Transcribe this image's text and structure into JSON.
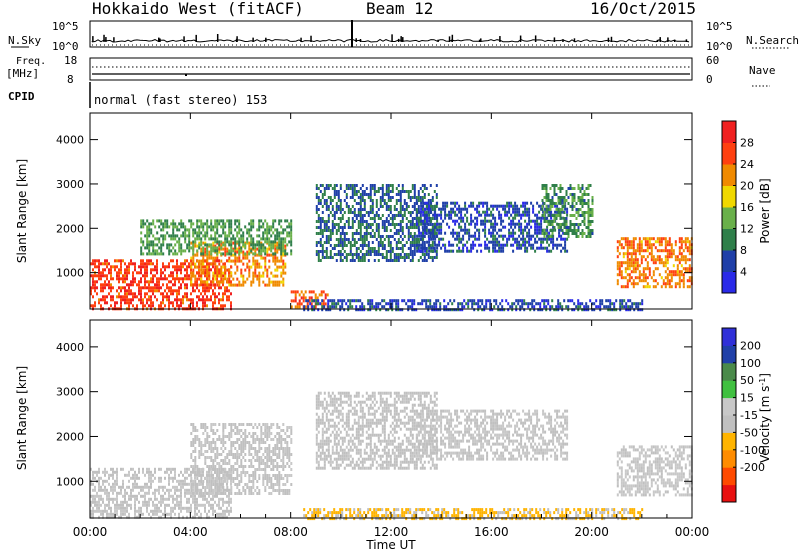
{
  "header": {
    "station": "Hokkaido West (fitACF)",
    "beam": "Beam 12",
    "date": "16/Oct/2015"
  },
  "top_panel": {
    "nsky_label": "N.Sky",
    "nsky_ticks": [
      "10^5",
      "10^0"
    ],
    "nsearch_label": "N.Search",
    "nsearch_ticks": [
      "10^5",
      "10^0"
    ],
    "freq_label": "Freq.",
    "freq_unit": "[MHz]",
    "freq_ticks": [
      "18",
      "8"
    ],
    "nave_label": "Nave",
    "nave_ticks": [
      "60",
      "0"
    ],
    "cpid_label": "CPID",
    "cpid_text": "normal (fast stereo) 153"
  },
  "colors": {
    "power_scale": [
      "#2a2ae8",
      "#1f3fa8",
      "#2f7f4a",
      "#69b04a",
      "#f0d800",
      "#f08a00",
      "#ff4010",
      "#f02020"
    ],
    "velocity_scale": [
      "#e81010",
      "#ff4a00",
      "#ff8c00",
      "#ffb400",
      "#c0c0c0",
      "#c8c8c8",
      "#40c040",
      "#4a8a4a",
      "#2040a8",
      "#3030d8"
    ]
  },
  "chart_data": [
    {
      "type": "heatmap",
      "name": "power",
      "ylabel": "Slant Range [km]",
      "yticks": [
        "1000",
        "2000",
        "3000",
        "4000"
      ],
      "ylim": [
        180,
        4600
      ],
      "xlim": [
        "00:00",
        "24:00"
      ],
      "colorbar_label": "Power [dB]",
      "colorbar_ticks": [
        "4",
        "8",
        "12",
        "16",
        "20",
        "24",
        "28"
      ],
      "colorbar_range": [
        0,
        32
      ],
      "regions": [
        {
          "t": [
            0.0,
            5.6
          ],
          "r": [
            200,
            1300
          ],
          "value": 27
        },
        {
          "t": [
            4.0,
            7.8
          ],
          "r": [
            700,
            1700
          ],
          "value": 22
        },
        {
          "t": [
            2.0,
            8.0
          ],
          "r": [
            1400,
            2200
          ],
          "value": 12
        },
        {
          "t": [
            8.0,
            9.5
          ],
          "r": [
            200,
            600
          ],
          "value": 25
        },
        {
          "t": [
            9.0,
            13.8
          ],
          "r": [
            1300,
            3000
          ],
          "value": 8
        },
        {
          "t": [
            13.0,
            19.0
          ],
          "r": [
            1500,
            2600
          ],
          "value": 6
        },
        {
          "t": [
            18.0,
            20.0
          ],
          "r": [
            1800,
            3000
          ],
          "value": 11
        },
        {
          "t": [
            21.0,
            24.0
          ],
          "r": [
            700,
            1800
          ],
          "value": 23
        },
        {
          "t": [
            8.5,
            22.0
          ],
          "r": [
            180,
            400
          ],
          "value": 6
        }
      ]
    },
    {
      "type": "heatmap",
      "name": "velocity",
      "ylabel": "Slant Range [km]",
      "yticks": [
        "1000",
        "2000",
        "3000",
        "4000"
      ],
      "ylim": [
        180,
        4600
      ],
      "xlabel": "Time UT",
      "xticks": [
        "00:00",
        "04:00",
        "08:00",
        "12:00",
        "16:00",
        "20:00",
        "00:00"
      ],
      "colorbar_label": "Velocity [m s^-1]",
      "colorbar_ticks": [
        "200",
        "100",
        "50",
        "15",
        "-15",
        "-50",
        "-100",
        "-200"
      ],
      "colorbar_range": [
        -250,
        250
      ],
      "regions": [
        {
          "t": [
            0.0,
            5.6
          ],
          "r": [
            200,
            1300
          ],
          "value": 0
        },
        {
          "t": [
            4.0,
            8.0
          ],
          "r": [
            700,
            2300
          ],
          "value": -10
        },
        {
          "t": [
            9.0,
            13.8
          ],
          "r": [
            1300,
            3000
          ],
          "value": -20
        },
        {
          "t": [
            13.0,
            19.0
          ],
          "r": [
            1500,
            2600
          ],
          "value": 5
        },
        {
          "t": [
            21.0,
            24.0
          ],
          "r": [
            700,
            1800
          ],
          "value": 10
        },
        {
          "t": [
            8.5,
            22.0
          ],
          "r": [
            180,
            400
          ],
          "value": -60
        }
      ]
    }
  ]
}
